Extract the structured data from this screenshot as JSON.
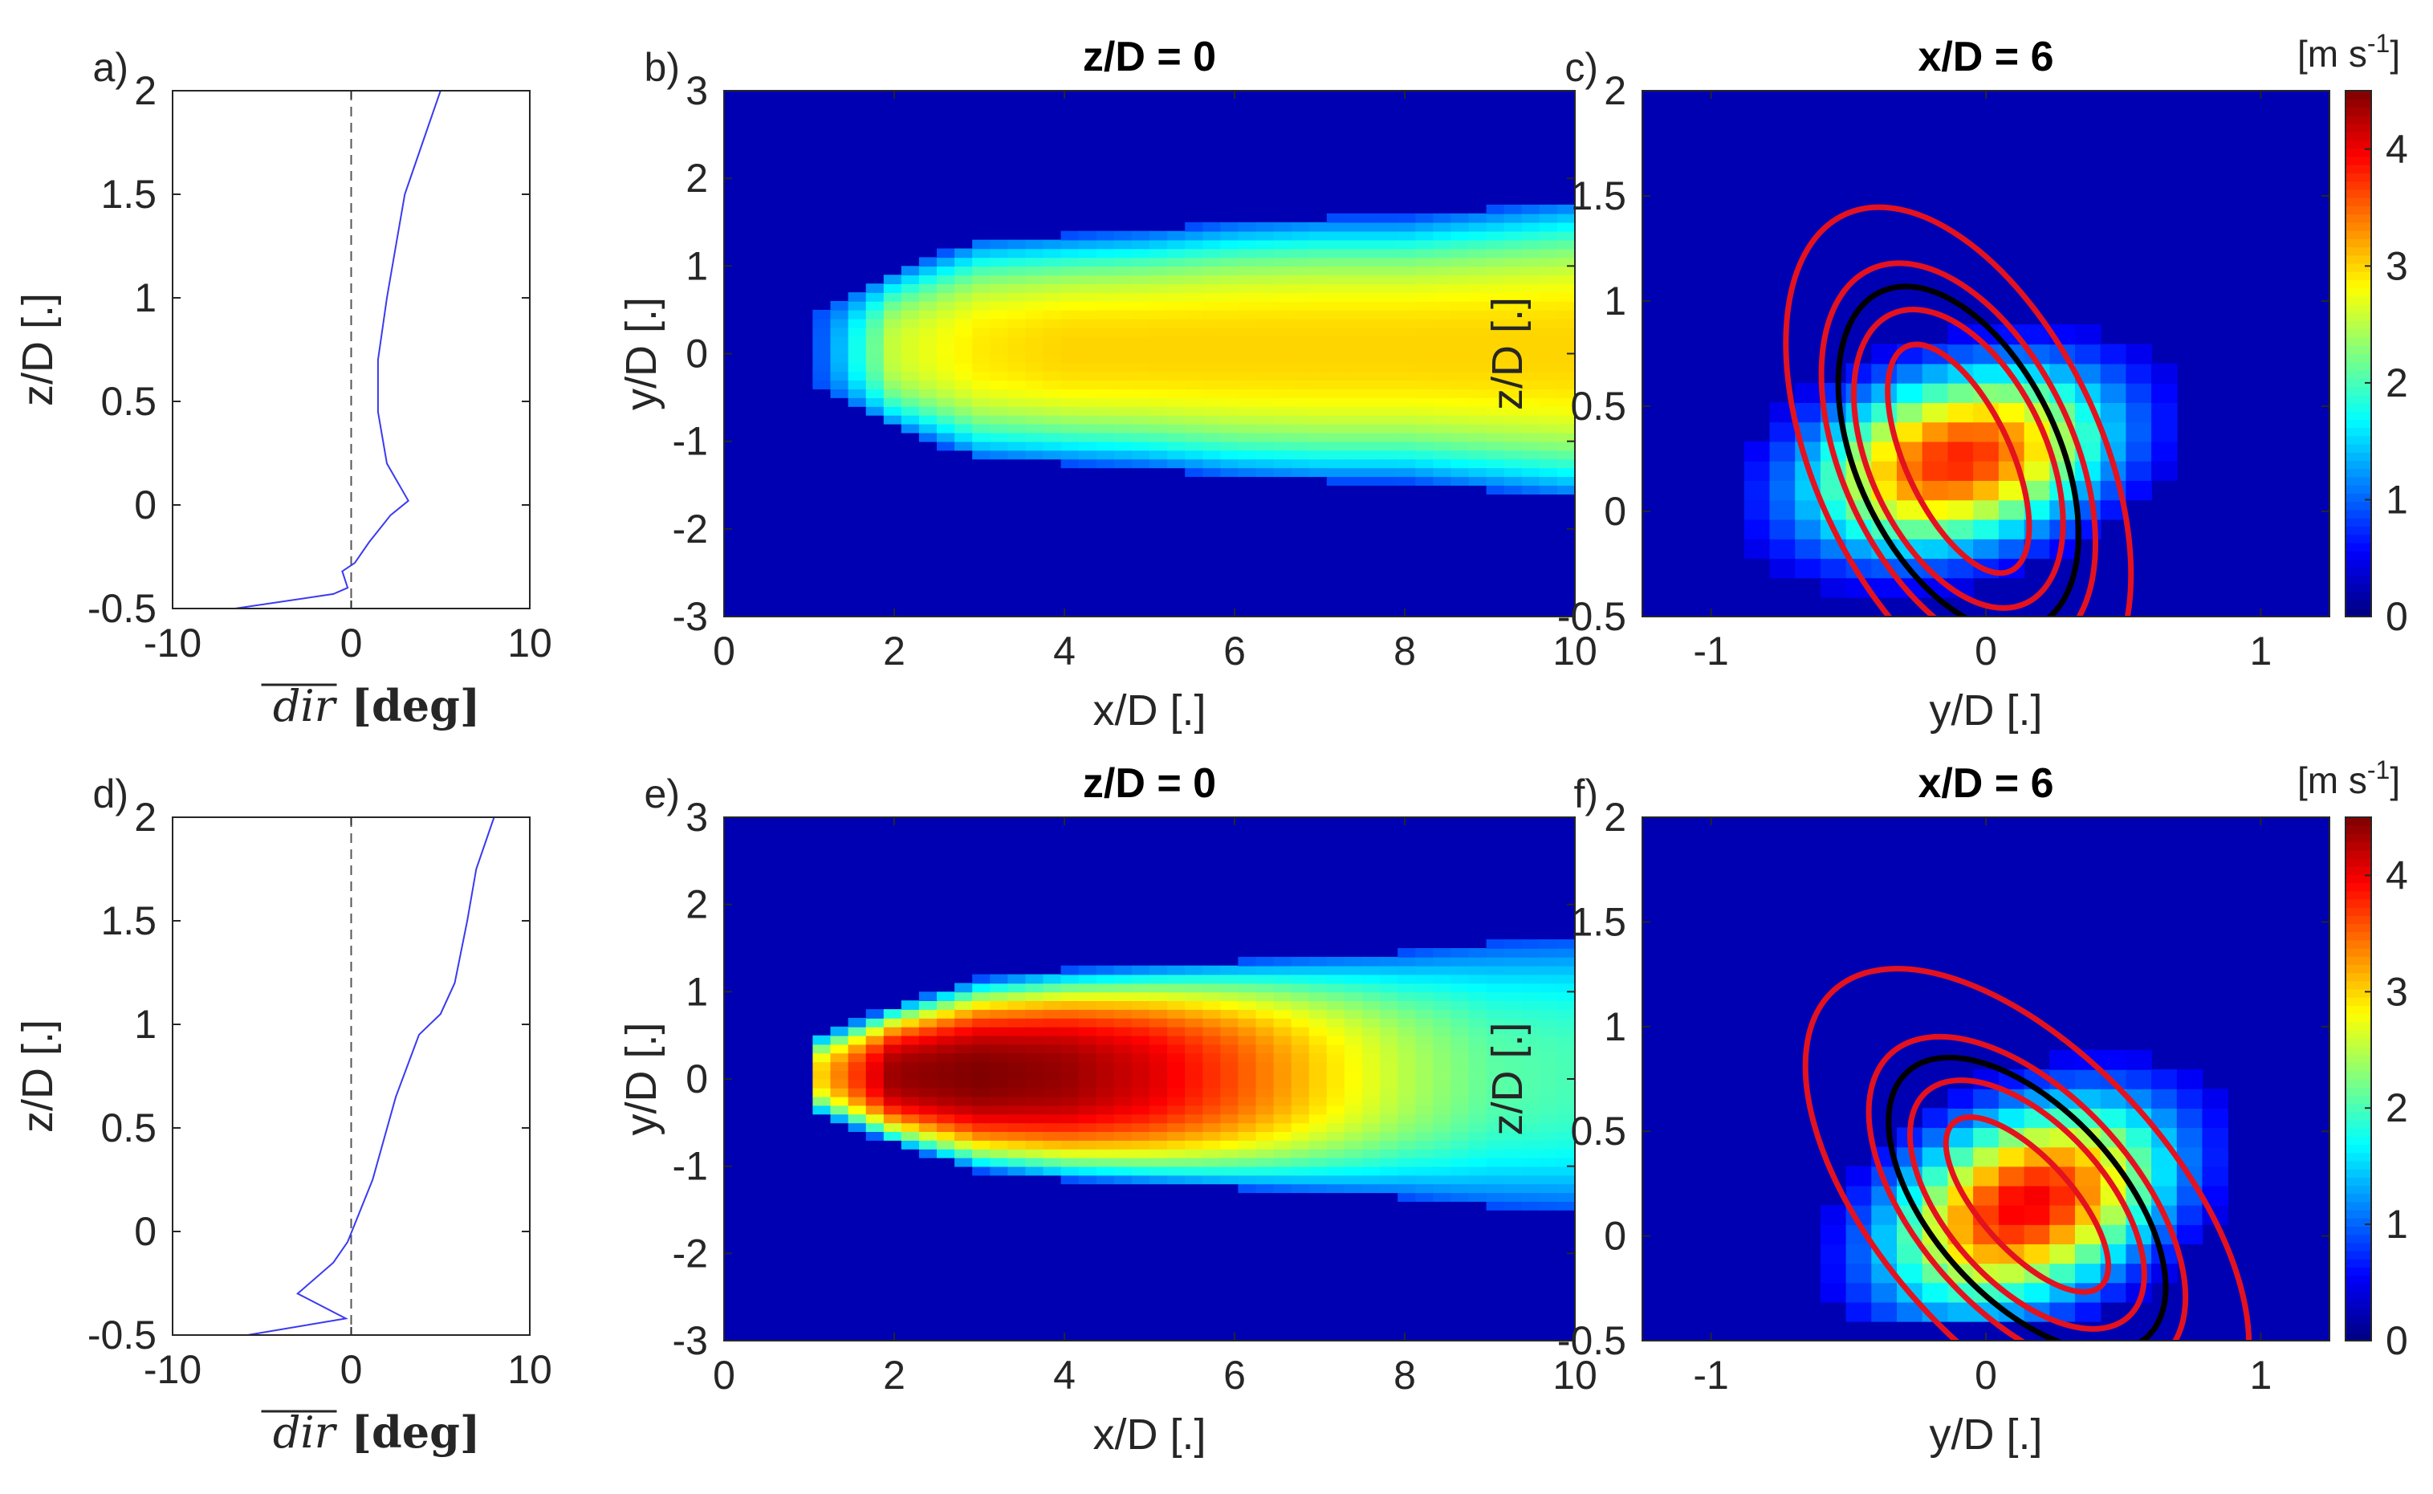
{
  "chart_data": [
    {
      "panel": "a)",
      "type": "line",
      "xlabel": "dir",
      "xlabel_unit": "[deg]",
      "ylabel": "z/D [.]",
      "xlim": [
        -10,
        10
      ],
      "ylim": [
        -0.5,
        2
      ],
      "xticks": [
        "-10",
        "0",
        "10"
      ],
      "yticks": [
        "-0.5",
        "0",
        "0.5",
        "1",
        "1.5",
        "2"
      ],
      "reference_line_x": 0,
      "series": [
        {
          "x": [
            -6.5,
            -1.0,
            -0.2,
            -0.5,
            0.2,
            1.0,
            2.2,
            3.2,
            2.0,
            1.5,
            1.5,
            2.0,
            2.5,
            3.0,
            4.0,
            5.0
          ],
          "y": [
            -0.5,
            -0.43,
            -0.4,
            -0.32,
            -0.28,
            -0.18,
            -0.05,
            0.02,
            0.2,
            0.45,
            0.7,
            1.0,
            1.25,
            1.5,
            1.75,
            2.0
          ]
        }
      ]
    },
    {
      "panel": "b)",
      "type": "heatmap",
      "title": "z/D = 0",
      "xlabel": "x/D [.]",
      "ylabel": "y/D [.]",
      "xlim": [
        0,
        10
      ],
      "ylim": [
        -3,
        3
      ],
      "xticks": [
        "0",
        "2",
        "4",
        "6",
        "8",
        "10"
      ],
      "yticks": [
        "-3",
        "-2",
        "-1",
        "0",
        "1",
        "2",
        "3"
      ],
      "colormap": "jet",
      "clim": [
        0,
        4.5
      ],
      "wake_profile": [
        [
          1.0,
          0.8,
          0.7
        ],
        [
          2.0,
          1.8,
          2.6
        ],
        [
          3.0,
          2.5,
          2.9
        ],
        [
          4.0,
          2.6,
          3.0
        ],
        [
          5.0,
          2.7,
          3.0
        ],
        [
          6.0,
          2.9,
          3.0
        ],
        [
          7.0,
          3.0,
          3.0
        ],
        [
          8.0,
          3.0,
          3.0
        ],
        [
          9.0,
          3.2,
          3.0
        ],
        [
          10.0,
          3.4,
          3.0
        ]
      ]
    },
    {
      "panel": "c)",
      "type": "heatmap",
      "title": "x/D = 6",
      "xlabel": "y/D [.]",
      "ylabel": "z/D [.]",
      "xlim": [
        -1.25,
        1.25
      ],
      "ylim": [
        -0.5,
        2
      ],
      "xticks": [
        "-1",
        "0",
        "1"
      ],
      "yticks": [
        "-0.5",
        "0",
        "0.5",
        "1",
        "1.5",
        "2"
      ],
      "colormap": "jet",
      "clim": [
        0,
        4.5
      ],
      "center": [
        -0.1,
        0.25
      ],
      "peak": 3.8,
      "tilt_deg": 25,
      "contours": [
        {
          "color": "#e4121e",
          "a": 0.25,
          "b": 0.45
        },
        {
          "color": "#e4121e",
          "a": 0.42,
          "b": 0.58
        },
        {
          "color": "#000000",
          "a": 0.48,
          "b": 0.67
        },
        {
          "color": "#e4121e",
          "a": 0.55,
          "b": 0.76
        },
        {
          "color": "#e4121e",
          "a": 0.68,
          "b": 0.98
        }
      ]
    },
    {
      "panel": "d)",
      "type": "line",
      "xlabel": "dir",
      "xlabel_unit": "[deg]",
      "ylabel": "z/D [.]",
      "xlim": [
        -10,
        10
      ],
      "ylim": [
        -0.5,
        2
      ],
      "xticks": [
        "-10",
        "0",
        "10"
      ],
      "yticks": [
        "-0.5",
        "0",
        "0.5",
        "1",
        "1.5",
        "2"
      ],
      "reference_line_x": 0,
      "series": [
        {
          "x": [
            -5.8,
            -0.3,
            -3.0,
            -1.0,
            -0.2,
            1.2,
            2.5,
            3.8,
            5.0,
            5.8,
            6.5,
            7.0,
            8.0
          ],
          "y": [
            -0.5,
            -0.42,
            -0.3,
            -0.15,
            -0.05,
            0.25,
            0.65,
            0.95,
            1.05,
            1.2,
            1.5,
            1.75,
            2.0
          ]
        }
      ]
    },
    {
      "panel": "e)",
      "type": "heatmap",
      "title": "z/D = 0",
      "xlabel": "x/D [.]",
      "ylabel": "y/D [.]",
      "xlim": [
        0,
        10
      ],
      "ylim": [
        -3,
        3
      ],
      "xticks": [
        "0",
        "2",
        "4",
        "6",
        "8",
        "10"
      ],
      "yticks": [
        "-3",
        "-2",
        "-1",
        "0",
        "1",
        "2",
        "3"
      ],
      "colormap": "jet",
      "clim": [
        0,
        4.5
      ],
      "wake_profile": [
        [
          1.0,
          0.8,
          2.8
        ],
        [
          2.0,
          1.6,
          4.4
        ],
        [
          3.0,
          2.2,
          4.5
        ],
        [
          4.0,
          2.4,
          4.4
        ],
        [
          5.0,
          2.5,
          4.1
        ],
        [
          6.0,
          2.6,
          3.6
        ],
        [
          7.0,
          2.7,
          3.0
        ],
        [
          8.0,
          2.8,
          2.5
        ],
        [
          9.0,
          3.0,
          2.1
        ],
        [
          10.0,
          3.1,
          2.0
        ]
      ]
    },
    {
      "panel": "f)",
      "type": "heatmap",
      "title": "x/D = 6",
      "xlabel": "y/D [.]",
      "ylabel": "z/D [.]",
      "xlim": [
        -1.25,
        1.25
      ],
      "ylim": [
        -0.5,
        2
      ],
      "xticks": [
        "-1",
        "0",
        "1"
      ],
      "yticks": [
        "-0.5",
        "0",
        "0.5",
        "1",
        "1.5",
        "2"
      ],
      "colormap": "jet",
      "clim": [
        0,
        4.5
      ],
      "center": [
        0.15,
        0.15
      ],
      "peak": 4.0,
      "tilt_deg": 42,
      "contours": [
        {
          "color": "#e4121e",
          "a": 0.22,
          "b": 0.4
        },
        {
          "color": "#e4121e",
          "a": 0.38,
          "b": 0.55
        },
        {
          "color": "#000000",
          "a": 0.45,
          "b": 0.65
        },
        {
          "color": "#e4121e",
          "a": 0.52,
          "b": 0.74
        },
        {
          "color": "#e4121e",
          "a": 0.7,
          "b": 1.05
        }
      ]
    }
  ],
  "colorbar": {
    "unit_label": "[m s",
    "unit_exponent": "-1",
    "unit_close": "]",
    "ticks": [
      "0",
      "1",
      "2",
      "3",
      "4"
    ],
    "range": [
      0,
      4.5
    ]
  }
}
